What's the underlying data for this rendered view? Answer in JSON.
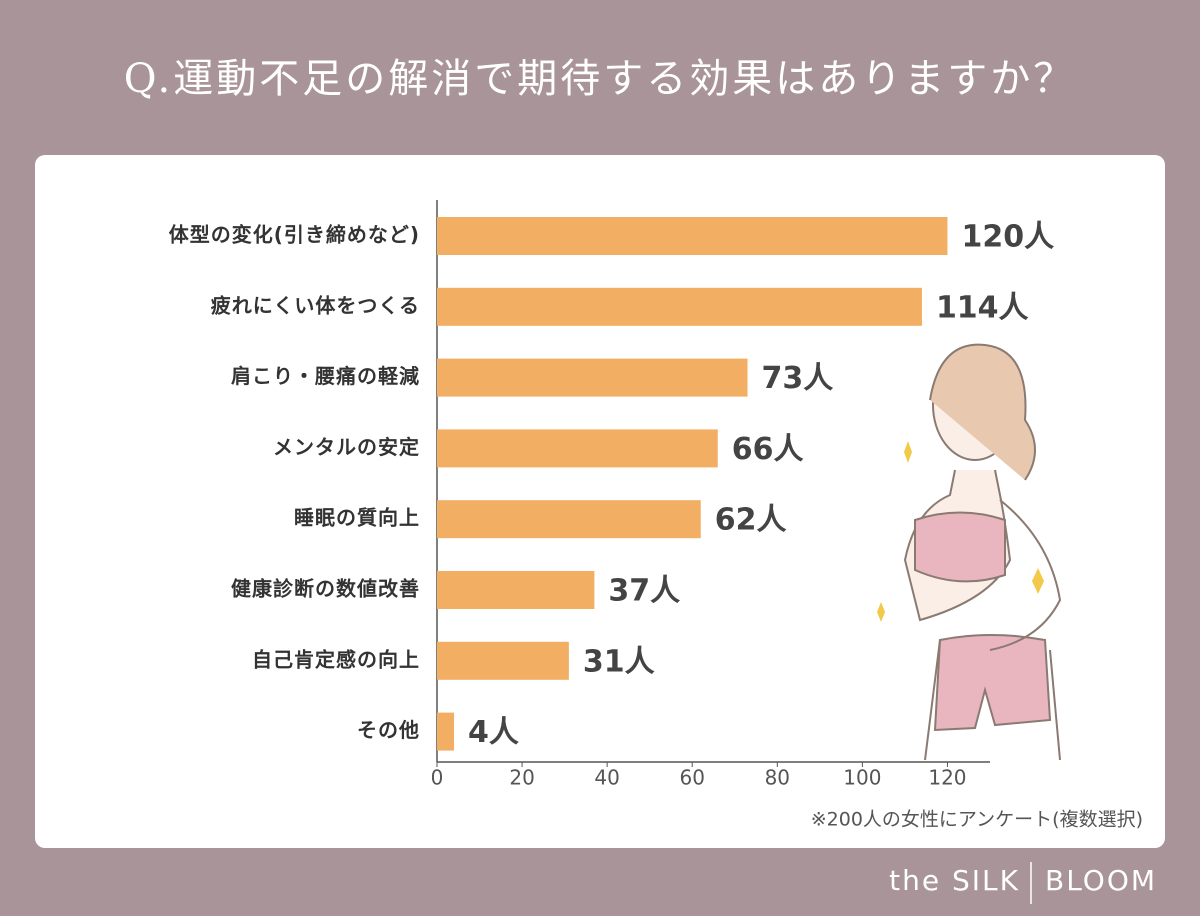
{
  "chart_data": {
    "type": "bar",
    "orientation": "horizontal",
    "title": "Q.運動不足の解消で期待する効果はありますか？",
    "categories": [
      "体型の変化(引き締めなど)",
      "疲れにくい体をつくる",
      "肩こり・腰痛の軽減",
      "メンタルの安定",
      "睡眠の質向上",
      "健康診断の数値改善",
      "自己肯定感の向上",
      "その他"
    ],
    "values": [
      120,
      114,
      73,
      66,
      62,
      37,
      31,
      4
    ],
    "value_labels": [
      "120人",
      "114人",
      "73人",
      "66人",
      "62人",
      "37人",
      "31人",
      "4人"
    ],
    "color": "#f2ae63",
    "xlim": [
      0,
      130
    ],
    "xticks": [
      0,
      20,
      40,
      60,
      80,
      100,
      120
    ],
    "note": "※200人の女性にアンケート(複数選択)",
    "logo": [
      "the SILK",
      "BLOOM"
    ]
  }
}
